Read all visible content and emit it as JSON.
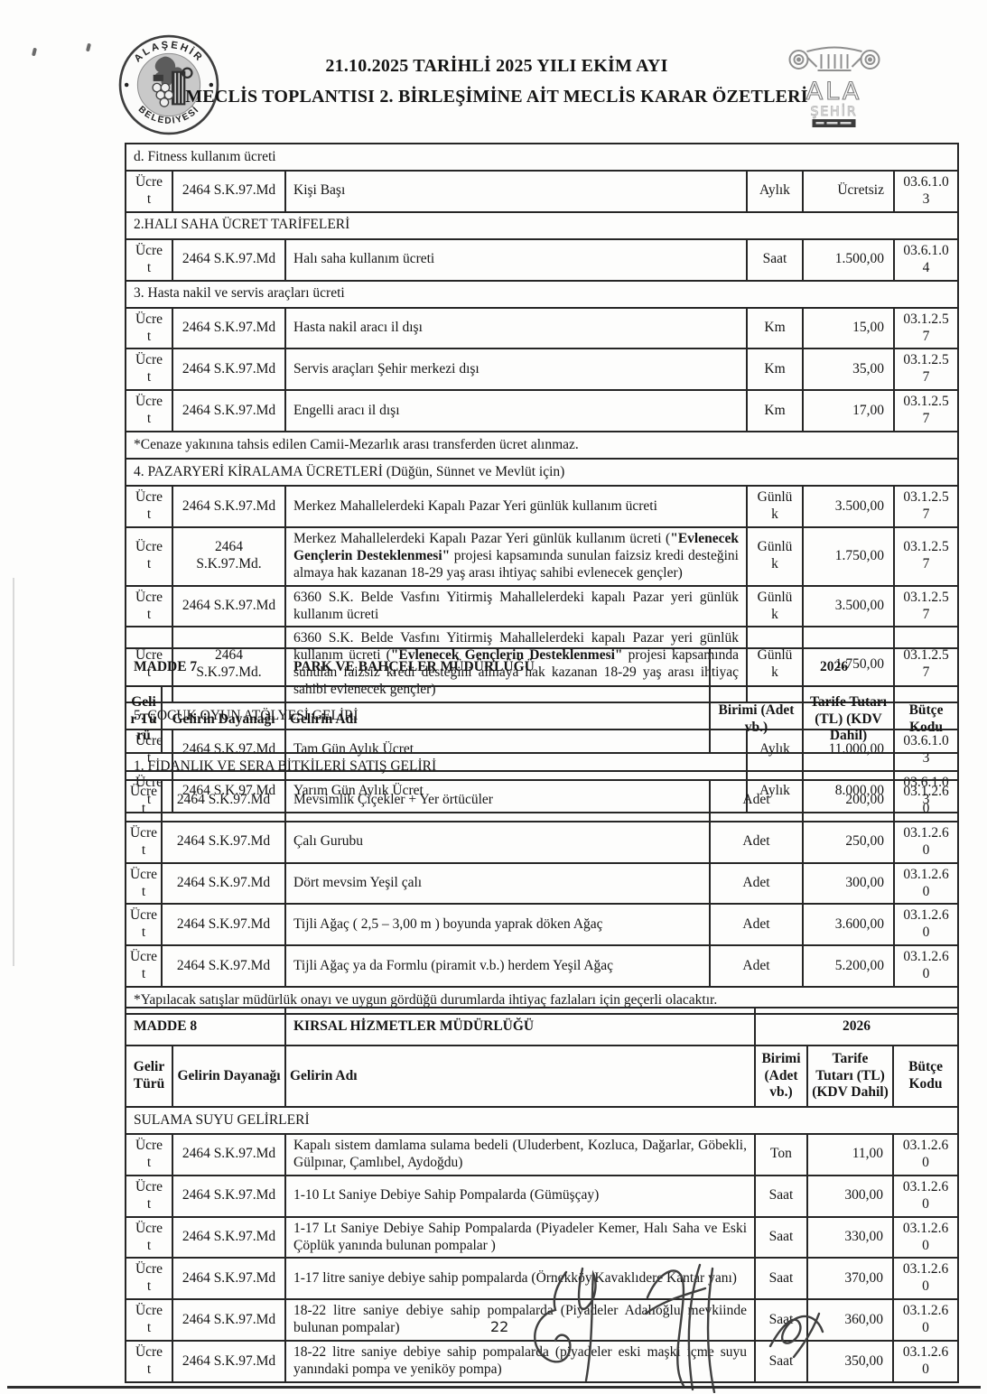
{
  "header": {
    "title_line1": "21.10.2025 TARİHLİ 2025 YILI EKİM AYI",
    "title_line2": "MECLİS TOPLANTISI 2. BİRLEŞİMİNE AİT MECLİS KARAR ÖZETLERİ",
    "seal": {
      "arc_top": "ALAŞEHİR",
      "arc_bottom": "BELEDİYESİ"
    },
    "right_logo": {
      "line1": "ALA",
      "line2": "ŞEHİR"
    }
  },
  "table1": {
    "rows": [
      {
        "kind": "section",
        "text": "d. Fitness kullanım ücreti"
      },
      {
        "kind": "data",
        "type": "Ücret",
        "basis": "2464 S.K.97.Md",
        "name": "Kişi Başı",
        "unit": "Aylık",
        "amount": "Ücretsiz",
        "code": "03.6.1.03"
      },
      {
        "kind": "section",
        "text": "2.HALI SAHA ÜCRET TARİFELERİ"
      },
      {
        "kind": "data",
        "type": "Ücret",
        "basis": "2464 S.K.97.Md",
        "name": "Halı saha kullanım ücreti",
        "unit": "Saat",
        "amount": "1.500,00",
        "code": "03.6.1.04"
      },
      {
        "kind": "section",
        "text": "3. Hasta nakil ve servis araçları ücreti"
      },
      {
        "kind": "data",
        "type": "Ücret",
        "basis": "2464 S.K.97.Md",
        "name": "Hasta nakil aracı il dışı",
        "unit": "Km",
        "amount": "15,00",
        "code": "03.1.2.57"
      },
      {
        "kind": "data",
        "type": "Ücret",
        "basis": "2464 S.K.97.Md",
        "name": "Servis araçları Şehir merkezi dışı",
        "unit": "Km",
        "amount": "35,00",
        "code": "03.1.2.57"
      },
      {
        "kind": "data",
        "type": "Ücret",
        "basis": "2464 S.K.97.Md",
        "name": "Engelli aracı il dışı",
        "unit": "Km",
        "amount": "17,00",
        "code": "03.1.2.57"
      },
      {
        "kind": "note",
        "text": "*Cenaze yakınına tahsis edilen Camii-Mezarlık arası transferden ücret alınmaz."
      },
      {
        "kind": "section",
        "text": "4. PAZARYERİ KİRALAMA ÜCRETLERİ (Düğün, Sünnet ve Mevlüt için)"
      },
      {
        "kind": "data",
        "type": "Ücret",
        "basis": "2464 S.K.97.Md",
        "name": "Merkez Mahallelerdeki Kapalı Pazar Yeri günlük kullanım ücreti",
        "unit": "Günlük",
        "amount": "3.500,00",
        "code": "03.1.2.57"
      },
      {
        "kind": "data",
        "type": "Ücret",
        "basis": "2464 S.K.97.Md.",
        "justify": true,
        "name_segments": [
          {
            "t": "Merkez Mahallelerdeki Kapalı Pazar Yeri günlük kullanım ücreti (",
            "b": false
          },
          {
            "t": "\"Evlenecek Gençlerin Desteklenmesi\"",
            "b": true
          },
          {
            "t": " projesi kapsamında sunulan faizsiz kredi desteğini almaya hak kazanan 18-29 yaş arası ihtiyaç sahibi evlenecek gençler)",
            "b": false
          }
        ],
        "unit": "Günlük",
        "amount": "1.750,00",
        "code": "03.1.2.57"
      },
      {
        "kind": "data",
        "type": "Ücret",
        "basis": "2464 S.K.97.Md",
        "justify": true,
        "name": "6360 S.K. Belde Vasfını Yitirmiş Mahallelerdeki kapalı Pazar yeri günlük kullanım ücreti",
        "unit": "Günlük",
        "amount": "3.500,00",
        "code": "03.1.2.57"
      },
      {
        "kind": "data",
        "type": "Ücret",
        "basis": "2464 S.K.97.Md.",
        "justify": true,
        "name_segments": [
          {
            "t": "6360 S.K. Belde Vasfını Yitirmiş Mahallelerdeki kapalı Pazar yeri günlük kullanım ücreti (",
            "b": false
          },
          {
            "t": "\"Evlenecek Gençlerin Desteklenmesi\"",
            "b": true
          },
          {
            "t": " projesi kapsamında sunulan faizsiz kredi desteğini almaya hak kazanan 18-29 yaş arası ihtiyaç sahibi evlenecek gençler)",
            "b": false
          }
        ],
        "unit": "Günlük",
        "amount": "1.750,00",
        "code": "03.1.2.57"
      },
      {
        "kind": "section",
        "text": "5. ÇOCUK OYUN ATÖLYESİ GELİRİ"
      },
      {
        "kind": "data",
        "type": "Ücret",
        "basis": "2464 S.K.97.Md",
        "name": "Tam Gün Aylık Ücret",
        "unit": "Aylık",
        "amount": "11.000,00",
        "code": "03.6.1.03"
      },
      {
        "kind": "data",
        "type": "Ücret",
        "basis": "2464 S.K.97.Md",
        "name": "Yarım Gün Aylık Ücret",
        "unit": "Aylık",
        "amount": "8.000,00",
        "code": "03.6.1.03"
      }
    ]
  },
  "madde7": {
    "label": "MADDE 7",
    "department": "PARK VE BAHÇELER MÜDÜRLÜĞÜ",
    "year": "2026",
    "columns": {
      "type": "Gelir Türü",
      "basis": "Gelirin Dayanağı",
      "name": "Gelirin Adı",
      "unit": "Birimi (Adet vb.)",
      "amount": "Tarife Tutarı (TL) (KDV Dahil)",
      "code": "Bütçe Kodu"
    },
    "rows": [
      {
        "kind": "section",
        "text": "1. FİDANLIK VE SERA BİTKİLERİ SATIŞ GELİRİ"
      },
      {
        "kind": "data",
        "type": "Ücret",
        "basis": "2464 S.K.97.Md",
        "name": "Mevsimlik Çiçekler + Yer örtücüler",
        "unit": "Adet",
        "amount": "200,00",
        "code": "03.1.2.60"
      },
      {
        "kind": "data",
        "type": "Ücret",
        "basis": "2464 S.K.97.Md",
        "name": "Çalı Gurubu",
        "unit": "Adet",
        "amount": "250,00",
        "code": "03.1.2.60"
      },
      {
        "kind": "data",
        "type": "Ücret",
        "basis": "2464 S.K.97.Md",
        "name": "Dört mevsim Yeşil çalı",
        "unit": "Adet",
        "amount": "300,00",
        "code": "03.1.2.60"
      },
      {
        "kind": "data",
        "type": "Ücret",
        "basis": "2464 S.K.97.Md",
        "name": "Tijli Ağaç  ( 2,5 – 3,00 m ) boyunda yaprak döken Ağaç",
        "unit": "Adet",
        "amount": "3.600,00",
        "code": "03.1.2.60"
      },
      {
        "kind": "data",
        "type": "Ücret",
        "basis": "2464 S.K.97.Md",
        "name": "Tijli Ağaç ya da Formlu (piramit v.b.) herdem Yeşil Ağaç",
        "unit": "Adet",
        "amount": "5.200,00",
        "code": "03.1.2.60"
      },
      {
        "kind": "note",
        "text": "*Yapılacak satışlar müdürlük onayı ve uygun gördüğü durumlarda ihtiyaç fazlaları için geçerli olacaktır."
      }
    ]
  },
  "madde8": {
    "label": "MADDE 8",
    "department": "KIRSAL HİZMETLER MÜDÜRLÜĞÜ",
    "year": "2026",
    "columns": {
      "type": "Gelir Türü",
      "basis": "Gelirin Dayanağı",
      "name": "Gelirin Adı",
      "unit": "Birimi (Adet vb.)",
      "amount": "Tarife Tutarı (TL) (KDV Dahil)",
      "code": "Bütçe Kodu"
    },
    "rows": [
      {
        "kind": "section",
        "text": "SULAMA SUYU GELİRLERİ"
      },
      {
        "kind": "data",
        "type": "Ücret",
        "basis": "2464 S.K.97.Md",
        "justify": true,
        "name": "Kapalı sistem damlama sulama bedeli (Uluderbent, Kozluca, Dağarlar, Göbekli, Gülpınar, Çamlıbel, Aydoğdu)",
        "unit": "Ton",
        "amount": "11,00",
        "code": "03.1.2.60"
      },
      {
        "kind": "data",
        "type": "Ücret",
        "basis": "2464 S.K.97.Md",
        "name": "1-10 Lt Saniye Debiye Sahip Pompalarda (Gümüşçay)",
        "unit": "Saat",
        "amount": "300,00",
        "code": "03.1.2.60"
      },
      {
        "kind": "data",
        "type": "Ücret",
        "basis": "2464 S.K.97.Md",
        "justify": true,
        "name": "1-17 Lt Saniye Debiye Sahip Pompalarda (Piyadeler Kemer, Halı Saha ve Eski Çöplük yanında bulunan pompalar )",
        "unit": "Saat",
        "amount": "330,00",
        "code": "03.1.2.60"
      },
      {
        "kind": "data",
        "type": "Ücret",
        "basis": "2464 S.K.97.Md",
        "name": "1-17 litre saniye debiye sahip pompalarda (Örnekköy,Kavaklıdere Kantar yanı)",
        "unit": "Saat",
        "amount": "370,00",
        "code": "03.1.2.60"
      },
      {
        "kind": "data",
        "type": "Ücret",
        "basis": "2464 S.K.97.Md",
        "justify": true,
        "name": "18-22 litre saniye debiye sahip pompalarda (Piyadeler Adalıoğlu mevkiinde bulunan pompalar)",
        "unit": "Saat",
        "amount": "360,00",
        "code": "03.1.2.60"
      },
      {
        "kind": "data",
        "type": "Ücret",
        "basis": "2464 S.K.97.Md",
        "justify": true,
        "name": "18-22 litre saniye debiye sahip pompalarda (piyadeler eski maşki içme suyu yanındaki pompa ve yeniköy  pompa)",
        "unit": "Saat",
        "amount": "350,00",
        "code": "03.1.2.60"
      }
    ]
  },
  "footer": {
    "page_number": "22"
  }
}
